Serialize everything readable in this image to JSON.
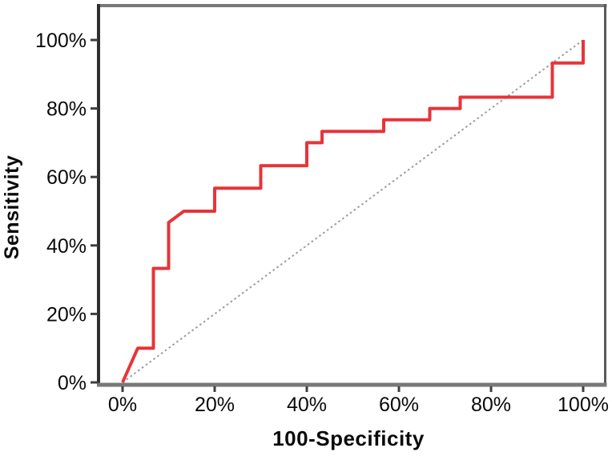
{
  "chart_data": {
    "type": "line",
    "subtype": "roc-curve",
    "title": "",
    "xlabel": "100-Specificity",
    "ylabel": "Sensitivity",
    "xlim": [
      0,
      100
    ],
    "ylim": [
      0,
      100
    ],
    "grid": false,
    "legend": false,
    "x_ticks": [
      {
        "value": 0,
        "label": "0%"
      },
      {
        "value": 20,
        "label": "20%"
      },
      {
        "value": 40,
        "label": "40%"
      },
      {
        "value": 60,
        "label": "60%"
      },
      {
        "value": 80,
        "label": "80%"
      },
      {
        "value": 100,
        "label": "100%"
      }
    ],
    "y_ticks": [
      {
        "value": 0,
        "label": "0%"
      },
      {
        "value": 20,
        "label": "20%"
      },
      {
        "value": 40,
        "label": "40%"
      },
      {
        "value": 60,
        "label": "60%"
      },
      {
        "value": 80,
        "label": "80%"
      },
      {
        "value": 100,
        "label": "100%"
      }
    ],
    "series": [
      {
        "name": "roc-curve",
        "style": "solid",
        "color": "#e73439",
        "points": [
          [
            0,
            0
          ],
          [
            3.3,
            10
          ],
          [
            6.7,
            10
          ],
          [
            6.7,
            33.3
          ],
          [
            10,
            33.3
          ],
          [
            10,
            46.7
          ],
          [
            13.3,
            50
          ],
          [
            20,
            50
          ],
          [
            20,
            56.7
          ],
          [
            30,
            56.7
          ],
          [
            30,
            63.3
          ],
          [
            40,
            63.3
          ],
          [
            40,
            70
          ],
          [
            43.3,
            70
          ],
          [
            43.3,
            73.3
          ],
          [
            56.7,
            73.3
          ],
          [
            56.7,
            76.7
          ],
          [
            66.7,
            76.7
          ],
          [
            66.7,
            80
          ],
          [
            73.3,
            80
          ],
          [
            73.3,
            83.3
          ],
          [
            93.3,
            83.3
          ],
          [
            93.3,
            93.3
          ],
          [
            100,
            93.3
          ],
          [
            100,
            100
          ]
        ]
      },
      {
        "name": "reference-diagonal",
        "style": "dotted",
        "color": "#9b9b9b",
        "points": [
          [
            0,
            0
          ],
          [
            100,
            100
          ]
        ]
      }
    ],
    "colors": {
      "curve": "#e73439",
      "reference": "#9b9b9b",
      "border_top": "#787878",
      "border_right": "#5a5a5a",
      "border_left": "#2f2f2f",
      "border_bottom": "#787878",
      "tick": "#3f3f3f",
      "text": "#0a0a0a",
      "background": "#ffffff"
    }
  }
}
